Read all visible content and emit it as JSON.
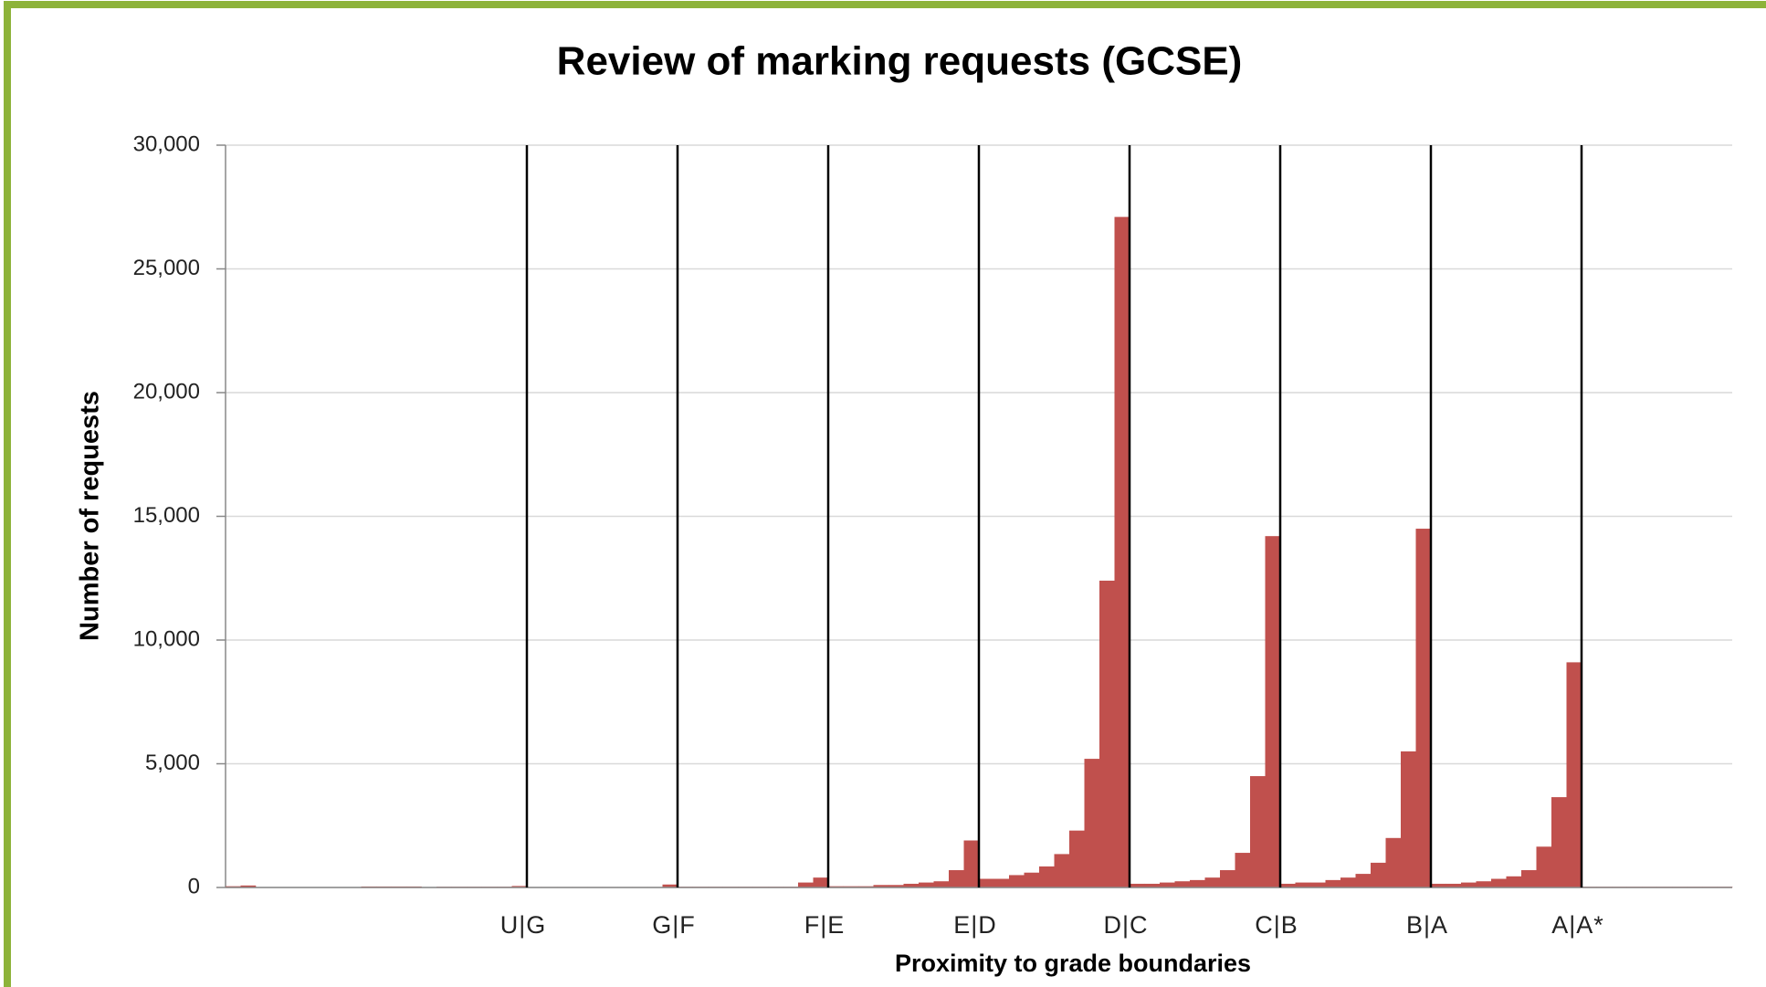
{
  "chart_data": {
    "type": "bar",
    "title": "Review of marking requests (GCSE)",
    "x_label": "Proximity to grade boundaries",
    "y_label": "Number of requests",
    "color": "#c0504d",
    "values": [
      50,
      80,
      0,
      0,
      0,
      0,
      0,
      0,
      0,
      40,
      40,
      40,
      40,
      0,
      30,
      30,
      30,
      30,
      30,
      60,
      20,
      20,
      20,
      20,
      20,
      20,
      20,
      20,
      20,
      120,
      30,
      30,
      30,
      30,
      30,
      30,
      30,
      30,
      200,
      400,
      50,
      50,
      50,
      100,
      100,
      150,
      200,
      250,
      700,
      1900,
      350,
      350,
      500,
      600,
      850,
      1350,
      2300,
      5200,
      12400,
      27100,
      150,
      150,
      200,
      250,
      300,
      400,
      700,
      1400,
      4500,
      14200,
      150,
      200,
      200,
      300,
      400,
      550,
      1000,
      2000,
      5500,
      14500,
      150,
      150,
      200,
      250,
      350,
      450,
      700,
      1650,
      3650,
      9100,
      30,
      30,
      30,
      30,
      30,
      30,
      30,
      30,
      30,
      30
    ],
    "boundaries": [
      {
        "label": "U|G",
        "position": 20
      },
      {
        "label": "G|F",
        "position": 30
      },
      {
        "label": "F|E",
        "position": 40
      },
      {
        "label": "E|D",
        "position": 50
      },
      {
        "label": "D|C",
        "position": 60
      },
      {
        "label": "C|B",
        "position": 70
      },
      {
        "label": "B|A",
        "position": 80
      },
      {
        "label": "A|A*",
        "position": 90
      }
    ],
    "ylim": [
      0,
      30000
    ],
    "yticks": [
      0,
      {
        "value": 5000,
        "label": "5,000"
      },
      {
        "value": 10000,
        "label": "10,000"
      },
      {
        "value": 15000,
        "label": "15,000"
      },
      {
        "value": 20000,
        "label": "20,000"
      },
      {
        "value": 25000,
        "label": "25,000"
      },
      {
        "value": 30000,
        "label": "30,000"
      }
    ],
    "grid": true
  }
}
